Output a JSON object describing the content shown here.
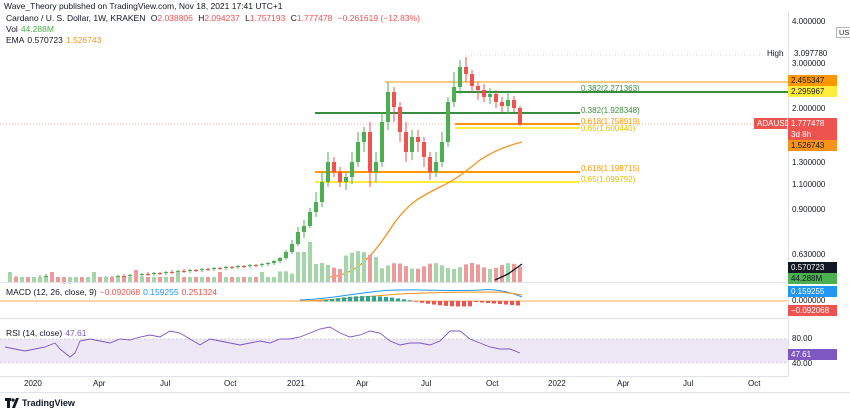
{
  "header": {
    "text": "Wave_Theory published on TradingView.com, Nov 18, 2021 17:41 UTC+1"
  },
  "legend": {
    "symbol": "Cardano / U. S. Dollar, 1W, KRAKEN",
    "o_label": "O",
    "o": "2.038806",
    "h_label": "H",
    "h": "2.094237",
    "l_label": "L",
    "l": "1.757193",
    "c_label": "C",
    "c": "1.777478",
    "change": "−0.261619 (−12.83%)",
    "vol_label": "Vol",
    "vol": "44.288M",
    "ema_label": "EMA",
    "ema1": "0.570723",
    "ema2": "1.526743",
    "macd_label": "MACD (12, 26, close, 9)",
    "macd1": "−0.092068",
    "macd2": "0.159255",
    "macd3": "0.251324",
    "rsi_label": "RSI (14, close)",
    "rsi": "47.61"
  },
  "price_axis": {
    "currency": "USD",
    "ticks": [
      "4.000000",
      "3.000000",
      "2.000000",
      "1.300000",
      "1.100000",
      "0.900000",
      "0.630000"
    ],
    "high_label": "High",
    "high_value": "3.097780",
    "badges": {
      "fib_top": "2.455347",
      "fib_mid": "2.295967",
      "ticker": "ADAUSD",
      "price": "1.777478",
      "countdown": "3d 8h",
      "ema": "1.526743",
      "ema_vol": "0.570723",
      "vol": "44.288M",
      "macd_signal": "0.159255",
      "macd_zero": "0.000000",
      "macd_val": "−0.092068",
      "rsi_tick": "80.00",
      "rsi_val": "47.61",
      "rsi_low": "40.00"
    }
  },
  "fibs": {
    "f1": "0.382(2.271363)",
    "f2": "0.382(1.928348)",
    "f3": "0.618(1.758919)",
    "f4": "0.65(1.600440)",
    "f5": "0.618(1.198715)",
    "f6": "0.65(1.099792)"
  },
  "time_axis": [
    "2020",
    "Apr",
    "Jul",
    "Oct",
    "2021",
    "Apr",
    "Jul",
    "Oct",
    "2022",
    "Apr",
    "Jul",
    "Oct"
  ],
  "footer": {
    "brand": "TradingView"
  },
  "colors": {
    "up": "#4caf50",
    "down": "#ef5350",
    "ema": "#f7931a",
    "fib_orange": "#ff9800",
    "fib_yellow": "#ffeb3b",
    "fib_green": "#388e3c",
    "rsi": "#7e57c2",
    "macd": "#2196f3"
  }
}
